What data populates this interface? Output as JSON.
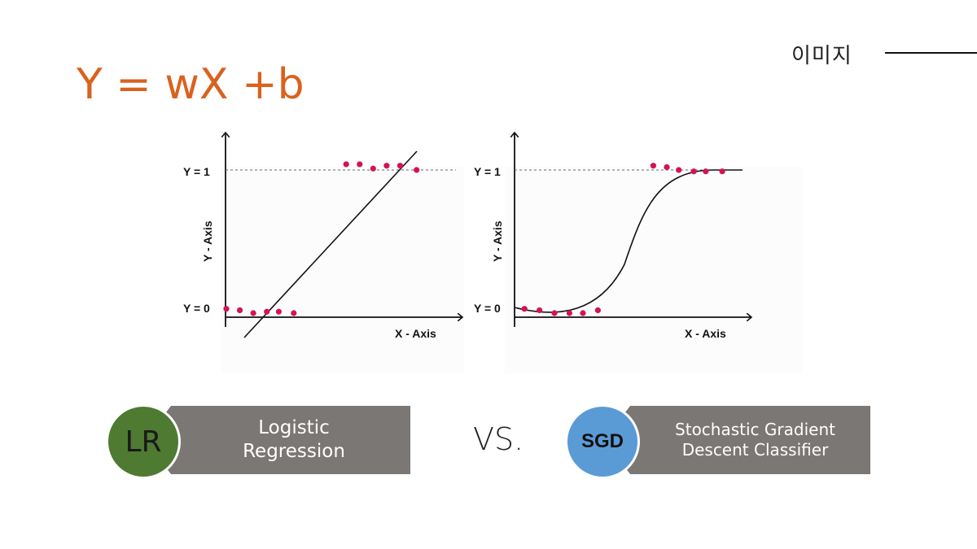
{
  "header": {
    "section_label": "이미지",
    "formula": "Y = wX +b"
  },
  "chart_data": [
    {
      "type": "scatter",
      "title": "",
      "xlabel": "X - Axis",
      "ylabel": "Y - Axis",
      "y_ticks": [
        "Y = 0",
        "Y = 1"
      ],
      "points": [
        {
          "x": 0.0,
          "y": 0.03
        },
        {
          "x": 0.09,
          "y": 0.02
        },
        {
          "x": 0.18,
          "y": 0.0
        },
        {
          "x": 0.27,
          "y": 0.01
        },
        {
          "x": 0.35,
          "y": 0.01
        },
        {
          "x": 0.45,
          "y": 0.0
        },
        {
          "x": 0.8,
          "y": 1.04
        },
        {
          "x": 0.89,
          "y": 1.04
        },
        {
          "x": 0.98,
          "y": 1.01
        },
        {
          "x": 1.07,
          "y": 1.03
        },
        {
          "x": 1.16,
          "y": 1.03
        },
        {
          "x": 1.27,
          "y": 1.0
        }
      ],
      "fit": "linear",
      "colors": {
        "points": "#d41451",
        "line": "#111111",
        "dashed": "#666666"
      }
    },
    {
      "type": "scatter",
      "title": "",
      "xlabel": "X - Axis",
      "ylabel": "Y - Axis",
      "y_ticks": [
        "Y = 0",
        "Y = 1"
      ],
      "points": [
        {
          "x": 0.05,
          "y": 0.03
        },
        {
          "x": 0.15,
          "y": 0.02
        },
        {
          "x": 0.25,
          "y": 0.0
        },
        {
          "x": 0.35,
          "y": 0.0
        },
        {
          "x": 0.44,
          "y": 0.0
        },
        {
          "x": 0.54,
          "y": 0.02
        },
        {
          "x": 0.91,
          "y": 1.03
        },
        {
          "x": 1.0,
          "y": 1.02
        },
        {
          "x": 1.08,
          "y": 1.0
        },
        {
          "x": 1.18,
          "y": 0.99
        },
        {
          "x": 1.26,
          "y": 0.99
        },
        {
          "x": 1.37,
          "y": 0.99
        }
      ],
      "fit": "sigmoid",
      "colors": {
        "points": "#d41451",
        "line": "#111111",
        "dashed": "#666666"
      }
    }
  ],
  "badges": [
    {
      "abbr": "LR",
      "label_line1": "Logistic",
      "label_line2": "Regression",
      "circle_color": "#4e7a31",
      "abbr_color": "#1a1a1a"
    },
    {
      "abbr": "SGD",
      "label_line1": "Stochastic Gradient",
      "label_line2": "Descent Classifier",
      "circle_color": "#5b9bd5",
      "abbr_color": "#111111"
    }
  ],
  "vs_label": "VS."
}
